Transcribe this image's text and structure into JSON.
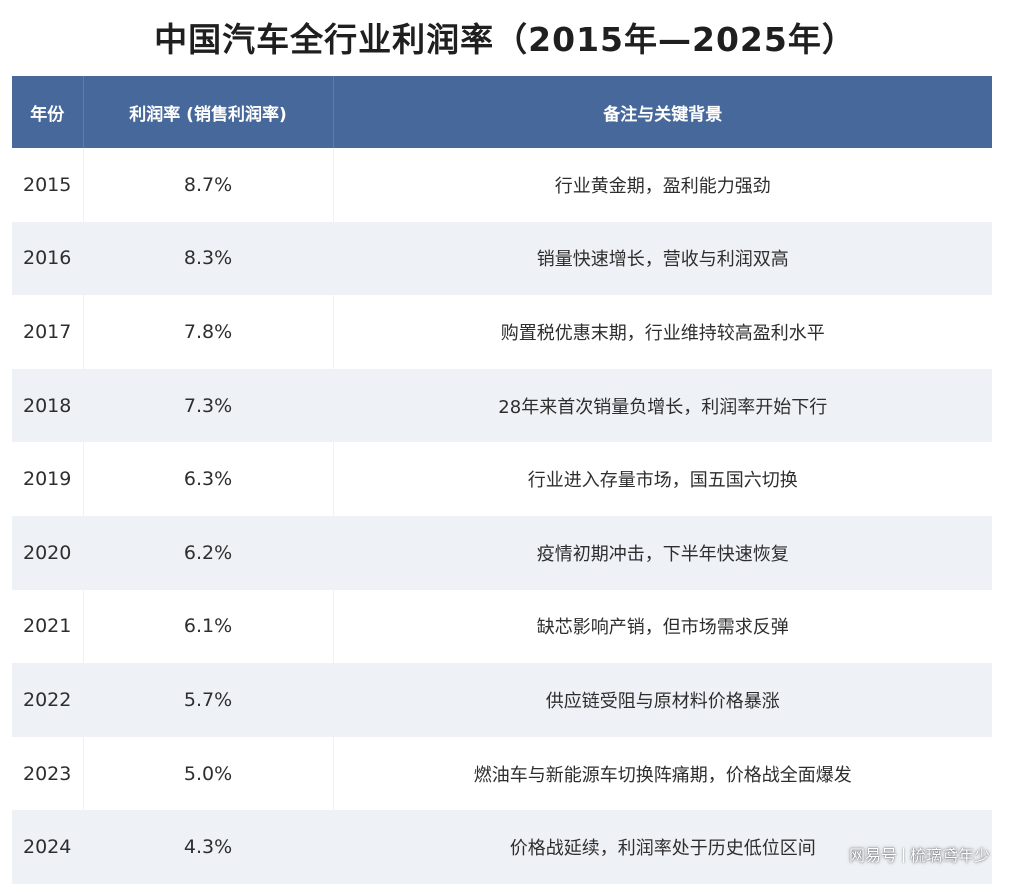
{
  "title": "中国汽车全行业利润率（2015年—2025年）",
  "table": {
    "headers": {
      "year": "年份",
      "rate": "利润率 (销售利润率)",
      "note": "备注与关键背景"
    },
    "rows": [
      {
        "year": "2015",
        "rate": "8.7%",
        "note": "行业黄金期，盈利能力强劲"
      },
      {
        "year": "2016",
        "rate": "8.3%",
        "note": "销量快速增长，营收与利润双高"
      },
      {
        "year": "2017",
        "rate": "7.8%",
        "note": "购置税优惠末期，行业维持较高盈利水平"
      },
      {
        "year": "2018",
        "rate": "7.3%",
        "note": "28年来首次销量负增长，利润率开始下行"
      },
      {
        "year": "2019",
        "rate": "6.3%",
        "note": "行业进入存量市场，国五国六切换"
      },
      {
        "year": "2020",
        "rate": "6.2%",
        "note": "疫情初期冲击，下半年快速恢复"
      },
      {
        "year": "2021",
        "rate": "6.1%",
        "note": "缺芯影响产销，但市场需求反弹"
      },
      {
        "year": "2022",
        "rate": "5.7%",
        "note": "供应链受阻与原材料价格暴涨"
      },
      {
        "year": "2023",
        "rate": "5.0%",
        "note": "燃油车与新能源车切换阵痛期，价格战全面爆发"
      },
      {
        "year": "2024",
        "rate": "4.3%",
        "note": "价格战延续，利润率处于历史低位区间"
      }
    ]
  },
  "watermark": {
    "source": "网易号",
    "author": "梳璃鸢年少"
  },
  "colors": {
    "header_bg": "#47689a",
    "row_alt_bg": "#eef1f5"
  }
}
